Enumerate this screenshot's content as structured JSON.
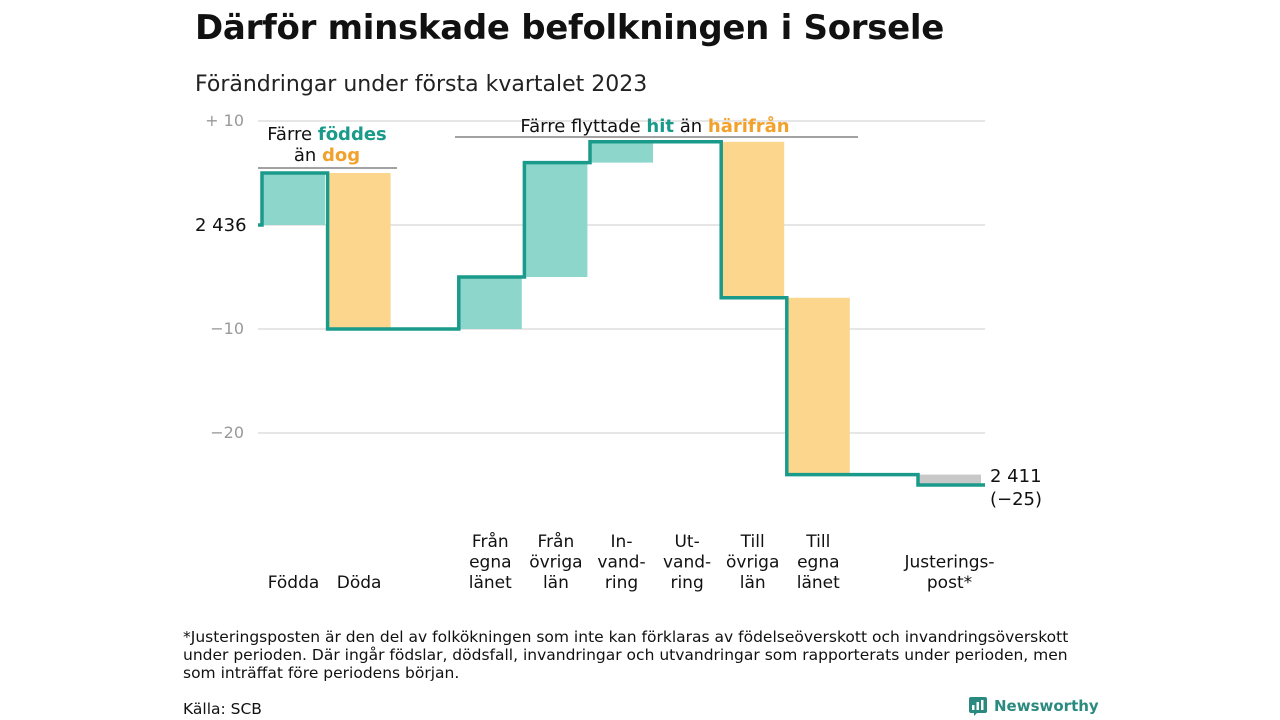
{
  "title": "Därför minskade befolkningen i Sorsele",
  "subtitle": "Förändringar under första kvartalet 2023",
  "footnote": "*Justeringsposten är den del av folkökningen som inte kan förklaras av födelseöverskott och invandringsöverskott under perioden. Där ingår födslar, dödsfall, invandringar och utvandringar som rapporterats under perioden, men som inträffat före periodens början.",
  "source": "Källa: SCB",
  "logo_text": "Newsworthy",
  "colors": {
    "teal": "#1a9a8a",
    "teal_fill": "#8dd6cc",
    "orange": "#f2a22c",
    "orange_fill": "#fbd68c",
    "grey_fill": "#c8c8c8",
    "grid": "#dddddd",
    "tick": "#999999"
  },
  "chart_data": {
    "type": "waterfall",
    "start_value": 2436,
    "start_label": "2 436",
    "end_value": 2411,
    "end_label": "2 411",
    "end_change_label": "(−25)",
    "ylim": [
      -30,
      10
    ],
    "yticks": [
      {
        "value": 10,
        "label": "+ 10"
      },
      {
        "value": 0,
        "label": ""
      },
      {
        "value": -10,
        "label": "−10"
      },
      {
        "value": -20,
        "label": "−20"
      }
    ],
    "steps": [
      {
        "label": "Födda",
        "value": 5,
        "kind": "in"
      },
      {
        "label": "Döda",
        "value": -15,
        "kind": "out"
      },
      {
        "label": "",
        "value": 0,
        "kind": "gap"
      },
      {
        "label": "Från egna länet",
        "value": 5,
        "kind": "in"
      },
      {
        "label": "Från övriga län",
        "value": 11,
        "kind": "in"
      },
      {
        "label": "In-vand-ring",
        "value": 2,
        "kind": "in"
      },
      {
        "label": "Ut-vand-ring",
        "value": 0,
        "kind": "out"
      },
      {
        "label": "Till övriga län",
        "value": -15,
        "kind": "out"
      },
      {
        "label": "Till egna länet",
        "value": -17,
        "kind": "out"
      },
      {
        "label": "",
        "value": 0,
        "kind": "gap"
      },
      {
        "label": "Justerings-post*",
        "value": -1,
        "kind": "adj"
      }
    ],
    "x_label_lines": [
      [
        "Födda"
      ],
      [
        "Döda"
      ],
      [],
      [
        "Från",
        "egna",
        "länet"
      ],
      [
        "Från",
        "övriga",
        "län"
      ],
      [
        "In-",
        "vand-",
        "ring"
      ],
      [
        "Ut-",
        "vand-",
        "ring"
      ],
      [
        "Till",
        "övriga",
        "län"
      ],
      [
        "Till",
        "egna",
        "länet"
      ],
      [],
      [
        "Justerings-",
        "post*"
      ]
    ],
    "annotations": [
      {
        "id": "births-deaths",
        "parts": [
          {
            "text": "Färre ",
            "color": "dark"
          },
          {
            "text": "föddes",
            "color": "teal"
          },
          {
            "text": "än ",
            "color": "dark",
            "newline": true
          },
          {
            "text": "dog",
            "color": "orange"
          }
        ]
      },
      {
        "id": "migration",
        "parts": [
          {
            "text": "Färre flyttade ",
            "color": "dark"
          },
          {
            "text": "hit",
            "color": "teal"
          },
          {
            "text": " än ",
            "color": "dark"
          },
          {
            "text": "härifrån",
            "color": "orange"
          }
        ]
      }
    ]
  }
}
